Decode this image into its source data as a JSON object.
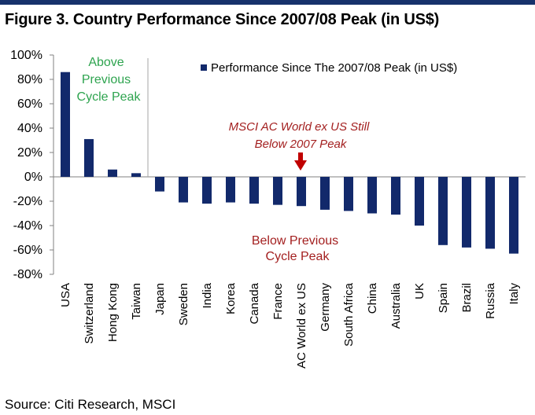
{
  "figure": {
    "title": "Figure 3. Country Performance Since 2007/08 Peak (in US$)",
    "source": "Source: Citi Research, MSCI"
  },
  "colors": {
    "bar": "#12296b",
    "header_rule": "#17326b",
    "divider": "#a6a6a6",
    "annotation_green": "#2ea44f",
    "annotation_red": "#a31f1f"
  },
  "chart_data": {
    "type": "bar",
    "title": "Figure 3. Country Performance Since 2007/08 Peak (in US$)",
    "xlabel": "",
    "ylabel": "",
    "ylim": [
      -80,
      100
    ],
    "yticks": [
      100,
      80,
      60,
      40,
      20,
      0,
      -20,
      -40,
      -60,
      -80
    ],
    "ytick_labels": [
      "100%",
      "80%",
      "60%",
      "40%",
      "20%",
      "0%",
      "-20%",
      "-40%",
      "-60%",
      "-80%"
    ],
    "grid": false,
    "legend": {
      "position": "top-right",
      "entries": [
        "Performance Since The 2007/08 Peak (in US$)"
      ]
    },
    "categories": [
      "USA",
      "Switzerland",
      "Hong Kong",
      "Taiwan",
      "Japan",
      "Sweden",
      "India",
      "Korea",
      "Canada",
      "France",
      "AC World ex US",
      "Germany",
      "South Africa",
      "China",
      "Australia",
      "UK",
      "Spain",
      "Brazil",
      "Russia",
      "Italy"
    ],
    "series": [
      {
        "name": "Performance Since The 2007/08 Peak (in US$)",
        "values": [
          86,
          31,
          6,
          3,
          -12,
          -21,
          -22,
          -21,
          -22,
          -23,
          -24,
          -27,
          -28,
          -30,
          -31,
          -40,
          -56,
          -58,
          -59,
          -63
        ]
      }
    ],
    "annotations": {
      "above": [
        "Above",
        "Previous",
        "Cycle Peak"
      ],
      "below": [
        "Below Previous",
        "Cycle Peak"
      ],
      "msci": [
        "MSCI AC World ex US Still",
        "Below 2007 Peak"
      ]
    }
  }
}
